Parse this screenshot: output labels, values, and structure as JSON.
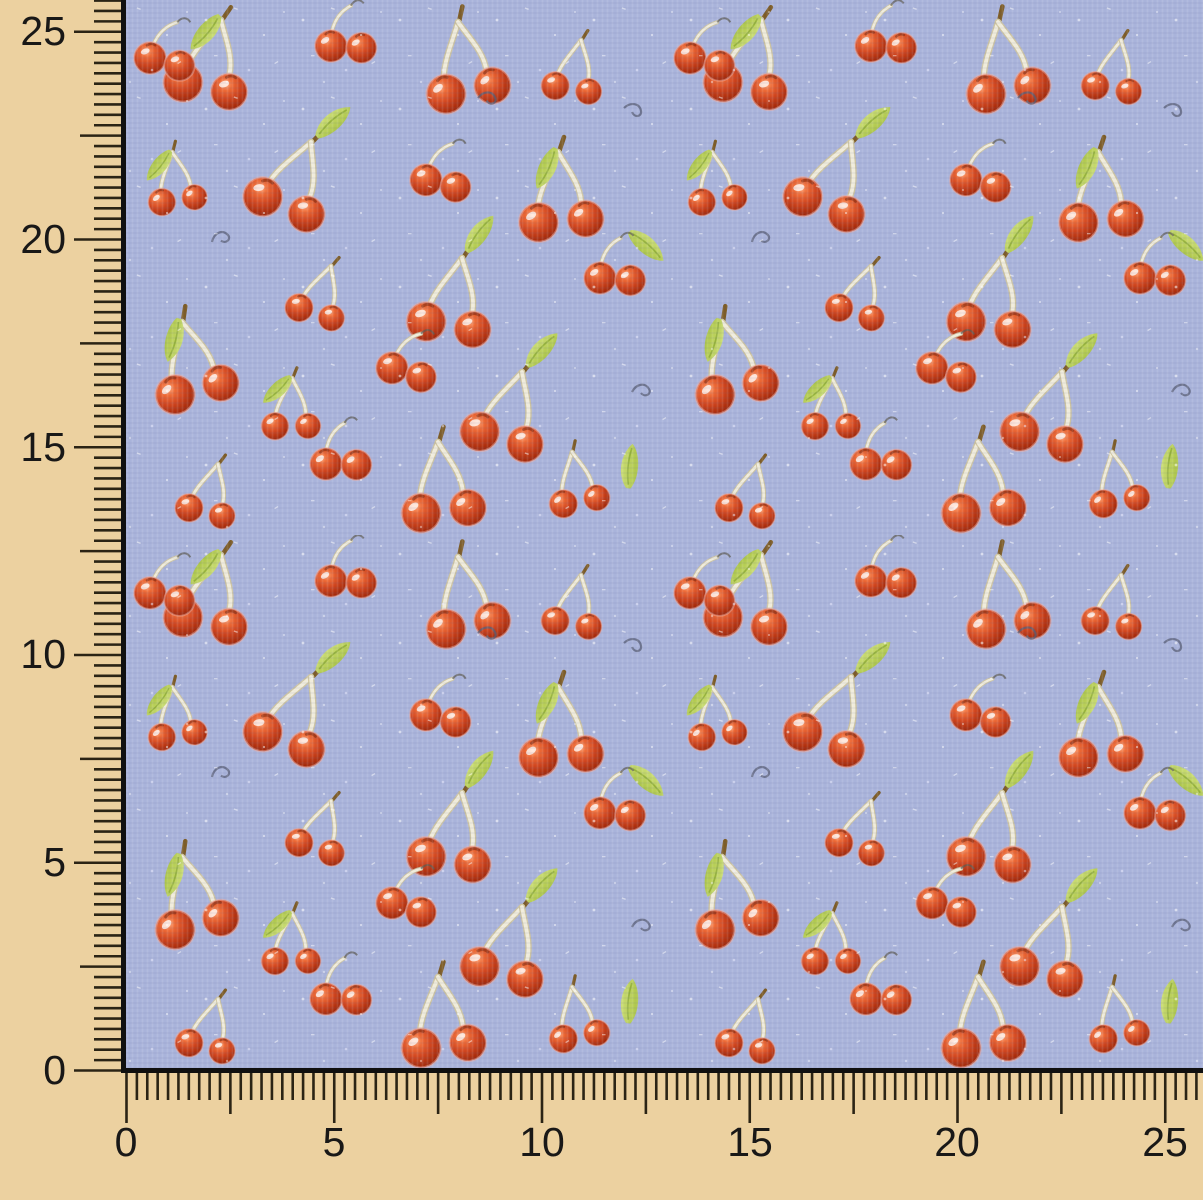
{
  "image": {
    "type": "product-photo",
    "subject": "Cherry print fabric swatch shown against a measuring ruler",
    "fabric_pattern": {
      "motifs": [
        "cherry-pair-on-stems",
        "cherry-pair-with-leaf",
        "small-cherry-pair",
        "cherry-duo",
        "single-leaf",
        "stem-squiggle"
      ],
      "background_color": "#a9b3da",
      "cherry_color": "#d1461f",
      "cherry_highlight": "#ffab7e",
      "leaf_color": "#b6cd54",
      "stem_color": "#f0ecda"
    }
  },
  "rulers": {
    "unit": "cm",
    "background_color": "#ecd1a0",
    "tick_color": "#2b2415",
    "label_color": "#191817",
    "tick_step": 0.25,
    "medium_step": 2.5,
    "label_step": 5,
    "vertical": {
      "labels": [
        "25",
        "20",
        "15",
        "10",
        "5",
        "0"
      ]
    },
    "horizontal": {
      "labels": [
        "0",
        "5",
        "10",
        "15",
        "20",
        "25"
      ]
    }
  }
}
